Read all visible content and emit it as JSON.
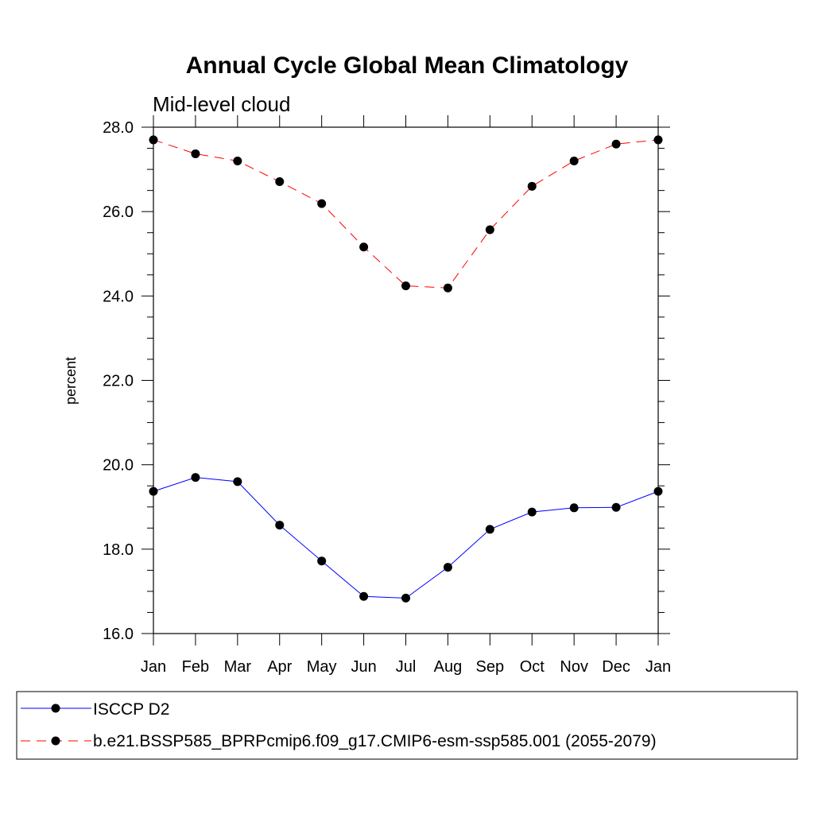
{
  "chart_data": {
    "type": "line",
    "title": "Annual Cycle Global Mean Climatology",
    "subtitle": "Mid-level cloud",
    "ylabel": "percent",
    "ylim": [
      16.0,
      28.0
    ],
    "yticks": [
      "16.0",
      "18.0",
      "20.0",
      "22.0",
      "24.0",
      "26.0",
      "28.0"
    ],
    "categories": [
      "Jan",
      "Feb",
      "Mar",
      "Apr",
      "May",
      "Jun",
      "Jul",
      "Aug",
      "Sep",
      "Oct",
      "Nov",
      "Dec",
      "Jan"
    ],
    "grid": false,
    "legend_position": "bottom",
    "series": [
      {
        "name": "ISCCP D2",
        "color": "#0000ff",
        "dash": "solid",
        "values": [
          19.37,
          19.7,
          19.6,
          18.57,
          17.72,
          16.88,
          16.84,
          17.57,
          18.47,
          18.88,
          18.98,
          18.99,
          19.37
        ]
      },
      {
        "name": "b.e21.BSSP585_BPRPcmip6.f09_g17.CMIP6-esm-ssp585.001 (2055-2079)",
        "color": "#ff0000",
        "dash": "dashed",
        "values": [
          27.7,
          27.37,
          27.2,
          26.71,
          26.19,
          25.16,
          24.24,
          24.19,
          25.57,
          26.6,
          27.2,
          27.6,
          27.7
        ]
      }
    ]
  }
}
